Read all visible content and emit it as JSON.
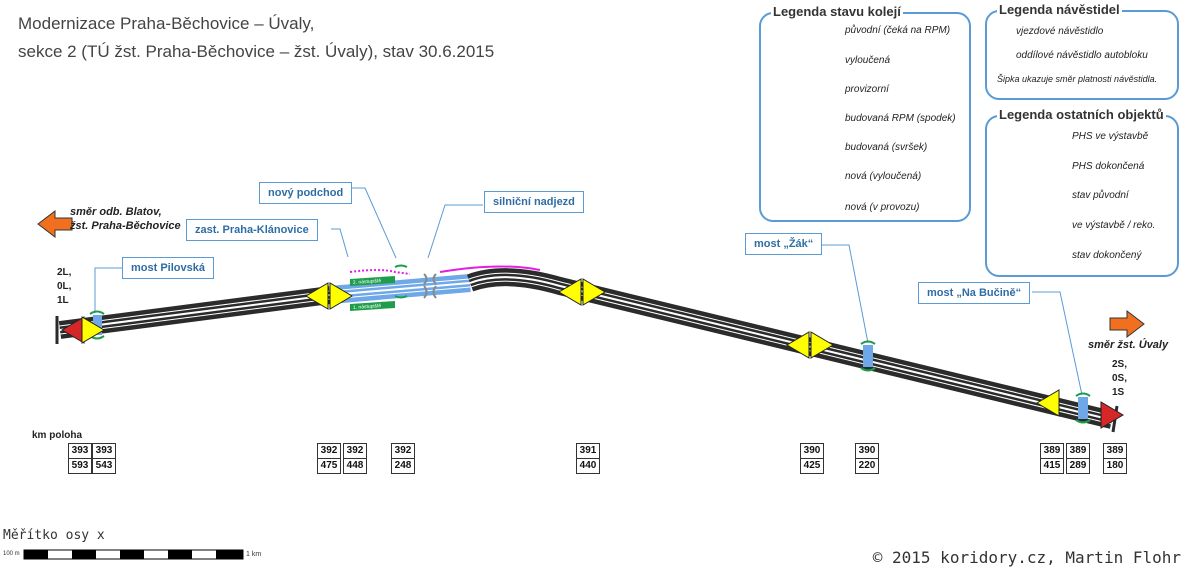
{
  "title": {
    "line1": "Modernizace Praha-Běchovice – Úvaly,",
    "line2": "sekce 2 (TÚ žst. Praha-Běchovice – žst. Úvaly), stav 30.6.2015"
  },
  "track_legend": {
    "title": "Legenda stavu kolejí",
    "items": [
      {
        "label": "původní (čeká na RPM)",
        "color": "#2b2b2b",
        "style": "solid"
      },
      {
        "label": "vyloučená",
        "color": "#e31a1c",
        "style": "solid"
      },
      {
        "label": "provizorní",
        "color": "#6fa8e8",
        "style": "solid"
      },
      {
        "label": "budovaná RPM (spodek)",
        "color": "#f07f2a",
        "style": "dotted"
      },
      {
        "label": "budovaná (svršek)",
        "color": "#1e9e4a",
        "style": "dash-dot"
      },
      {
        "label": "nová (vyloučená)",
        "color": "#1e9e4a",
        "style": "dash-dot"
      },
      {
        "label": "nová (v provozu)",
        "color": "#1e9e4a",
        "style": "solid"
      }
    ]
  },
  "signal_legend": {
    "title": "Legenda návěstidel",
    "items": [
      {
        "label": "vjezdové návěstidlo",
        "color": "#d62728",
        "icon": "entry-signal-icon"
      },
      {
        "label": "oddílové návěstidlo autobloku",
        "color": "#ffff00",
        "icon": "block-signal-icon"
      }
    ],
    "note": "Šipka ukazuje směr platnosti návěstidla."
  },
  "other_legend": {
    "title": "Legenda ostatních objektů",
    "items": [
      {
        "label": "PHS ve výstavbě",
        "color": "#e020e0",
        "style": "dotted"
      },
      {
        "label": "PHS dokončená",
        "color": "#e020e0",
        "style": "solid"
      },
      {
        "label": "stav původní",
        "color": "#111111",
        "style": "short"
      },
      {
        "label": "ve výstavbě / reko.",
        "color": "#e31a1c",
        "style": "short"
      },
      {
        "label": "stav dokončený",
        "color": "#1e9e4a",
        "style": "short"
      }
    ]
  },
  "callouts": {
    "most_pilovska": "most Pilovská",
    "zast_klanovice": "zast. Praha-Klánovice",
    "novy_podchod": "nový podchod",
    "silnicni_nadjezd": "silniční nadjezd",
    "most_zak": "most „Žák“",
    "most_na_bucine": "most „Na Bučině“"
  },
  "platforms": {
    "platform2": "2. nástupiště",
    "platform1": "1. nástupiště"
  },
  "directions": {
    "west": "směr odb. Blatov,\nžst. Praha-Běchovice",
    "east": "směr žst. Úvaly"
  },
  "tracks": {
    "west": "2L,\n0L,\n1L",
    "east": "2S,\n0S,\n1S"
  },
  "km": {
    "heading": "km poloha",
    "markers": [
      {
        "top": "393",
        "bottom": "593"
      },
      {
        "top": "393",
        "bottom": "543"
      },
      {
        "top": "392",
        "bottom": "475"
      },
      {
        "top": "392",
        "bottom": "448"
      },
      {
        "top": "392",
        "bottom": "248"
      },
      {
        "top": "391",
        "bottom": "440"
      },
      {
        "top": "390",
        "bottom": "425"
      },
      {
        "top": "390",
        "bottom": "220"
      },
      {
        "top": "389",
        "bottom": "415"
      },
      {
        "top": "389",
        "bottom": "289"
      },
      {
        "top": "389",
        "bottom": "180"
      }
    ]
  },
  "scale": {
    "label": "Měřítko osy x",
    "start": "100 m",
    "end": "1 km"
  },
  "copyright": "© 2015 koridory.cz, Martin Flohr",
  "colors": {
    "accent": "#5b9bd5",
    "track_original": "#2b2b2b",
    "track_provisional": "#6fa8e8",
    "signal_block": "#ffff00",
    "signal_entry": "#d62728",
    "arrow": "#f07020",
    "phs": "#e020e0",
    "new_green": "#1e9e4a"
  }
}
